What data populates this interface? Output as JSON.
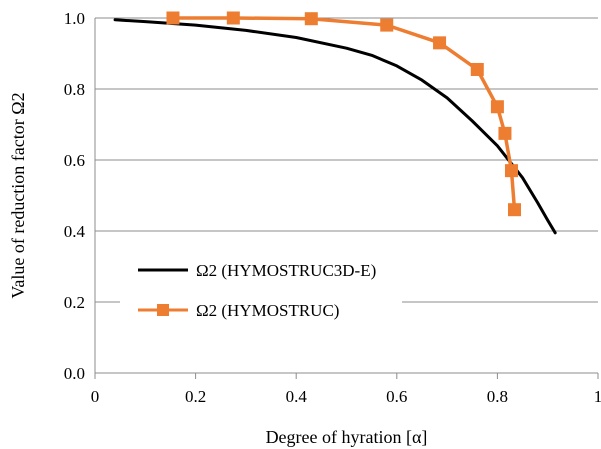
{
  "chart_data": {
    "type": "line",
    "title": "",
    "xlabel": "Degree of hyration [α]",
    "ylabel": "Value of reduction factor Ω2",
    "xlim": [
      0,
      1
    ],
    "ylim": [
      0.0,
      1.0
    ],
    "x_ticks": [
      "0",
      "0.2",
      "0.4",
      "0.6",
      "0.8",
      "1"
    ],
    "y_ticks": [
      "0.0",
      "0.2",
      "0.4",
      "0.6",
      "0.8",
      "1.0"
    ],
    "grid": "horizontal",
    "legend_position": "lower-left",
    "series": [
      {
        "name": "Ω2 (HYMOSTRUC3D-E)",
        "color": "#000000",
        "marker": "none",
        "x": [
          0.04,
          0.1,
          0.2,
          0.3,
          0.4,
          0.5,
          0.55,
          0.6,
          0.65,
          0.7,
          0.75,
          0.8,
          0.85,
          0.88,
          0.9,
          0.915
        ],
        "y": [
          0.995,
          0.99,
          0.98,
          0.965,
          0.945,
          0.915,
          0.895,
          0.865,
          0.825,
          0.775,
          0.71,
          0.64,
          0.55,
          0.48,
          0.43,
          0.395
        ]
      },
      {
        "name": "Ω2 (HYMOSTRUC)",
        "color": "#ED7D31",
        "marker": "square",
        "x": [
          0.155,
          0.275,
          0.43,
          0.58,
          0.685,
          0.76,
          0.8,
          0.815,
          0.828,
          0.834
        ],
        "y": [
          1.0,
          1.0,
          0.998,
          0.98,
          0.93,
          0.855,
          0.75,
          0.675,
          0.57,
          0.46
        ]
      }
    ]
  }
}
